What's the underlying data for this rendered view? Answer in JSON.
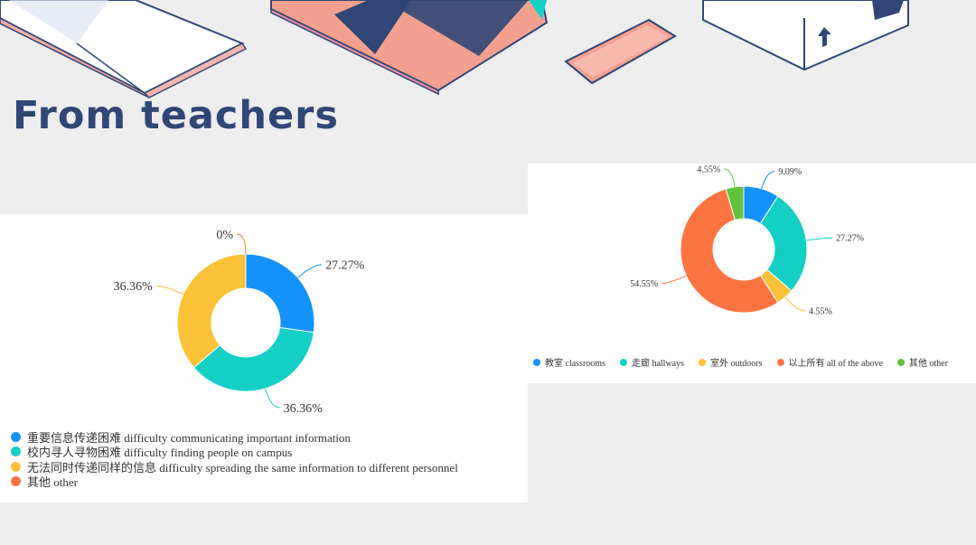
{
  "slide": {
    "title": "From teachers"
  },
  "colors": {
    "blue": "#1591fa",
    "teal": "#13cfc6",
    "yellow": "#fcc237",
    "orange": "#fd7443",
    "green": "#60c33c",
    "title": "#2f4676",
    "background": "#ededee"
  },
  "chart_data": [
    {
      "type": "pie",
      "variant": "donut",
      "categories": [
        "重要信息传递困难 difficulty communicating important information",
        "校内寻人寻物困难 difficulty finding people on campus",
        "无法同时传递同样的信息 difficulty spreading the same information to different personnel",
        "其他 other"
      ],
      "values": [
        27.27,
        36.36,
        36.36,
        0
      ],
      "labels": [
        "27.27%",
        "36.36%",
        "36.36%",
        "0%"
      ],
      "colors": [
        "#1591fa",
        "#13cfc6",
        "#fcc237",
        "#fd7443"
      ],
      "legend_position": "bottom-left"
    },
    {
      "type": "pie",
      "variant": "donut",
      "categories": [
        "教室 classrooms",
        "走廊 hallways",
        "室外 outdoors",
        "以上所有 all of the above",
        "其他 other"
      ],
      "values": [
        9.09,
        27.27,
        4.55,
        54.55,
        4.55
      ],
      "labels": [
        "9.09%",
        "27.27%",
        "4.55%",
        "54.55%",
        "4.55%"
      ],
      "colors": [
        "#1591fa",
        "#13cfc6",
        "#fcc237",
        "#fd7443",
        "#60c33c"
      ],
      "legend_position": "bottom"
    }
  ]
}
